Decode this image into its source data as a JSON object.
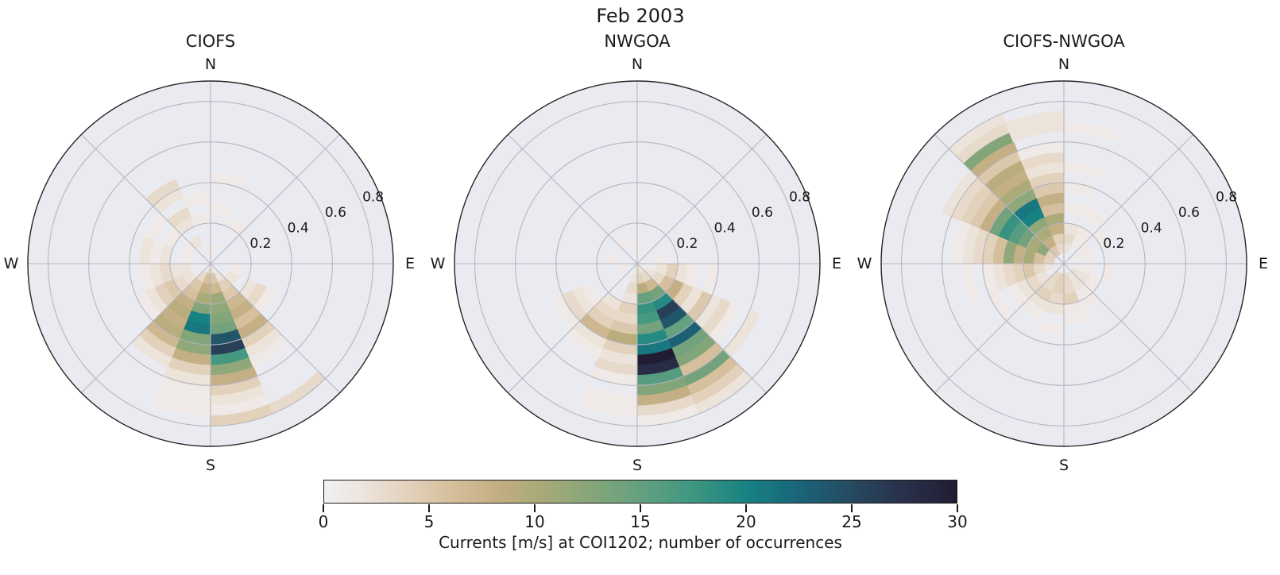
{
  "figure": {
    "title": "Feb 2003"
  },
  "style": {
    "axes_bg": "#eaeaf1",
    "grid_color": "#b3b3bc",
    "outline_color": "#262626",
    "text_color": "#1a1a1a"
  },
  "colorbar": {
    "min": 0,
    "max": 30,
    "ticks": [
      0,
      5,
      10,
      15,
      20,
      25,
      30
    ],
    "label": "Currents [m/s] at COI1202; number of occurrences",
    "stops": [
      [
        0.0,
        "#f1eff2"
      ],
      [
        0.05,
        "#eee7e1"
      ],
      [
        0.13,
        "#e3d2bd"
      ],
      [
        0.2,
        "#d6bf9c"
      ],
      [
        0.28,
        "#c2ad80"
      ],
      [
        0.35,
        "#a4aa77"
      ],
      [
        0.43,
        "#83a57a"
      ],
      [
        0.5,
        "#65a07f"
      ],
      [
        0.58,
        "#3f9781"
      ],
      [
        0.67,
        "#178182"
      ],
      [
        0.75,
        "#19657a"
      ],
      [
        0.83,
        "#264b61"
      ],
      [
        0.92,
        "#292f4a"
      ],
      [
        1.0,
        "#211c33"
      ]
    ]
  },
  "chart_data": [
    {
      "type": "heatmap",
      "layout": "polar",
      "title": "CIOFS",
      "compass": {
        "n": "N",
        "e": "E",
        "s": "S",
        "w": "W"
      },
      "theta_zero": "N",
      "theta_direction": "clockwise",
      "r_ticks": [
        0.2,
        0.4,
        0.6,
        0.8
      ],
      "r_max": 0.9,
      "dir_bin_deg": 22.5,
      "r_bin": 0.05,
      "value_unit": "number of occurrences",
      "cells_format": "[dir_bin_index_from_N_clockwise, radius_bin_index, count]",
      "cells": [
        [
          7,
          0,
          2
        ],
        [
          8,
          0,
          3
        ],
        [
          6,
          1,
          2
        ],
        [
          7,
          1,
          5
        ],
        [
          8,
          1,
          6
        ],
        [
          9,
          1,
          3
        ],
        [
          10,
          2,
          2
        ],
        [
          11,
          2,
          2
        ],
        [
          12,
          2,
          1
        ],
        [
          13,
          2,
          1
        ],
        [
          14,
          2,
          2
        ],
        [
          15,
          1,
          1
        ],
        [
          0,
          1,
          1
        ],
        [
          4,
          2,
          1
        ],
        [
          5,
          2,
          2
        ],
        [
          6,
          2,
          4
        ],
        [
          9,
          2,
          5
        ],
        [
          7,
          2,
          7
        ],
        [
          7,
          3,
          11
        ],
        [
          7,
          4,
          12
        ],
        [
          7,
          5,
          13
        ],
        [
          7,
          6,
          14
        ],
        [
          7,
          7,
          24
        ],
        [
          7,
          8,
          26
        ],
        [
          7,
          9,
          17
        ],
        [
          7,
          10,
          12
        ],
        [
          7,
          11,
          8
        ],
        [
          7,
          12,
          4
        ],
        [
          7,
          13,
          2
        ],
        [
          7,
          14,
          1
        ],
        [
          7,
          15,
          4
        ],
        [
          8,
          2,
          8
        ],
        [
          8,
          3,
          10
        ],
        [
          8,
          4,
          13
        ],
        [
          8,
          5,
          20
        ],
        [
          8,
          6,
          21
        ],
        [
          8,
          7,
          13
        ],
        [
          8,
          8,
          12
        ],
        [
          8,
          9,
          8
        ],
        [
          8,
          10,
          4
        ],
        [
          8,
          11,
          2
        ],
        [
          8,
          12,
          1
        ],
        [
          8,
          13,
          1
        ],
        [
          8,
          14,
          1
        ],
        [
          9,
          3,
          6
        ],
        [
          9,
          4,
          8
        ],
        [
          9,
          5,
          9
        ],
        [
          9,
          6,
          8
        ],
        [
          9,
          7,
          9
        ],
        [
          9,
          8,
          7
        ],
        [
          9,
          9,
          4
        ],
        [
          9,
          10,
          2
        ],
        [
          10,
          3,
          3
        ],
        [
          10,
          4,
          5
        ],
        [
          10,
          5,
          4
        ],
        [
          10,
          6,
          2
        ],
        [
          10,
          7,
          1
        ],
        [
          6,
          3,
          5
        ],
        [
          6,
          4,
          7
        ],
        [
          6,
          5,
          8
        ],
        [
          6,
          6,
          6
        ],
        [
          6,
          7,
          8
        ],
        [
          6,
          8,
          4
        ],
        [
          6,
          9,
          2
        ],
        [
          6,
          10,
          1
        ],
        [
          6,
          15,
          3
        ],
        [
          5,
          4,
          2
        ],
        [
          5,
          5,
          3
        ],
        [
          5,
          6,
          1
        ],
        [
          11,
          3,
          2
        ],
        [
          11,
          4,
          3
        ],
        [
          11,
          5,
          2
        ],
        [
          11,
          6,
          1
        ],
        [
          12,
          4,
          2
        ],
        [
          12,
          5,
          1
        ],
        [
          12,
          6,
          2
        ],
        [
          13,
          4,
          1
        ],
        [
          13,
          6,
          1
        ],
        [
          14,
          4,
          2
        ],
        [
          14,
          5,
          3
        ],
        [
          14,
          7,
          2
        ],
        [
          14,
          8,
          3
        ],
        [
          15,
          4,
          1
        ],
        [
          15,
          6,
          1
        ],
        [
          0,
          5,
          1
        ],
        [
          0,
          8,
          1
        ],
        [
          1,
          4,
          1
        ]
      ]
    },
    {
      "type": "heatmap",
      "layout": "polar",
      "title": "NWGOA",
      "compass": {
        "n": "N",
        "e": "E",
        "s": "S",
        "w": "W"
      },
      "theta_zero": "N",
      "theta_direction": "clockwise",
      "r_ticks": [
        0.2,
        0.4,
        0.6,
        0.8
      ],
      "r_max": 0.9,
      "dir_bin_deg": 22.5,
      "r_bin": 0.05,
      "value_unit": "number of occurrences",
      "cells_format": "[dir_bin_index_from_N_clockwise, radius_bin_index, count]",
      "cells": [
        [
          6,
          0,
          2
        ],
        [
          7,
          0,
          3
        ],
        [
          5,
          0,
          1
        ],
        [
          5,
          1,
          2
        ],
        [
          8,
          0,
          1
        ],
        [
          8,
          1,
          2
        ],
        [
          11,
          1,
          1
        ],
        [
          12,
          2,
          1
        ],
        [
          15,
          1,
          1
        ],
        [
          0,
          1,
          1
        ],
        [
          3,
          2,
          1
        ],
        [
          14,
          2,
          1
        ],
        [
          4,
          1,
          1
        ],
        [
          7,
          1,
          4
        ],
        [
          7,
          2,
          9
        ],
        [
          7,
          3,
          15
        ],
        [
          7,
          4,
          18
        ],
        [
          7,
          5,
          17
        ],
        [
          7,
          6,
          14
        ],
        [
          7,
          7,
          19
        ],
        [
          7,
          8,
          21
        ],
        [
          7,
          9,
          30
        ],
        [
          7,
          10,
          28
        ],
        [
          7,
          11,
          16
        ],
        [
          7,
          12,
          13
        ],
        [
          7,
          13,
          8
        ],
        [
          7,
          14,
          3
        ],
        [
          7,
          15,
          1
        ],
        [
          6,
          1,
          3
        ],
        [
          6,
          2,
          7
        ],
        [
          6,
          3,
          14
        ],
        [
          6,
          4,
          19
        ],
        [
          6,
          5,
          26
        ],
        [
          6,
          6,
          24
        ],
        [
          6,
          7,
          15
        ],
        [
          6,
          8,
          23
        ],
        [
          6,
          9,
          14
        ],
        [
          6,
          10,
          13
        ],
        [
          6,
          11,
          6
        ],
        [
          6,
          12,
          14
        ],
        [
          6,
          13,
          6
        ],
        [
          6,
          14,
          4
        ],
        [
          6,
          15,
          2
        ],
        [
          5,
          2,
          3
        ],
        [
          5,
          3,
          6
        ],
        [
          5,
          4,
          8
        ],
        [
          5,
          5,
          4
        ],
        [
          5,
          6,
          2
        ],
        [
          5,
          7,
          5
        ],
        [
          5,
          8,
          2
        ],
        [
          5,
          9,
          3
        ],
        [
          5,
          10,
          1
        ],
        [
          5,
          12,
          2
        ],
        [
          4,
          2,
          2
        ],
        [
          4,
          3,
          4
        ],
        [
          4,
          4,
          2
        ],
        [
          4,
          5,
          1
        ],
        [
          4,
          7,
          1
        ],
        [
          8,
          2,
          3
        ],
        [
          8,
          3,
          2
        ],
        [
          8,
          4,
          4
        ],
        [
          8,
          5,
          3
        ],
        [
          8,
          6,
          5
        ],
        [
          8,
          7,
          9
        ],
        [
          8,
          8,
          4
        ],
        [
          8,
          9,
          2
        ],
        [
          8,
          10,
          3
        ],
        [
          8,
          11,
          1
        ],
        [
          8,
          13,
          1
        ],
        [
          8,
          14,
          1
        ],
        [
          9,
          4,
          2
        ],
        [
          9,
          5,
          3
        ],
        [
          9,
          6,
          4
        ],
        [
          9,
          7,
          7
        ],
        [
          9,
          8,
          2
        ],
        [
          9,
          9,
          1
        ],
        [
          10,
          5,
          1
        ],
        [
          10,
          6,
          2
        ],
        [
          10,
          7,
          3
        ],
        [
          10,
          8,
          1
        ]
      ]
    },
    {
      "type": "heatmap",
      "layout": "polar",
      "title": "CIOFS-NWGOA",
      "compass": {
        "n": "N",
        "e": "E",
        "s": "S",
        "w": "W"
      },
      "theta_zero": "N",
      "theta_direction": "clockwise",
      "r_ticks": [
        0.2,
        0.4,
        0.6,
        0.8
      ],
      "r_max": 0.9,
      "dir_bin_deg": 22.5,
      "r_bin": 0.05,
      "value_unit": "number of occurrences",
      "cells_format": "[dir_bin_index_from_N_clockwise, radius_bin_index, count]",
      "cells": [
        [
          14,
          1,
          5
        ],
        [
          14,
          2,
          8
        ],
        [
          14,
          3,
          10
        ],
        [
          14,
          4,
          12
        ],
        [
          14,
          5,
          20
        ],
        [
          14,
          6,
          21
        ],
        [
          14,
          7,
          12
        ],
        [
          14,
          8,
          10
        ],
        [
          14,
          9,
          8
        ],
        [
          14,
          10,
          9
        ],
        [
          14,
          11,
          5
        ],
        [
          14,
          12,
          8
        ],
        [
          14,
          13,
          13
        ],
        [
          14,
          14,
          3
        ],
        [
          14,
          15,
          2
        ],
        [
          13,
          1,
          4
        ],
        [
          13,
          2,
          12
        ],
        [
          13,
          3,
          10
        ],
        [
          13,
          4,
          14
        ],
        [
          13,
          5,
          16
        ],
        [
          13,
          6,
          18
        ],
        [
          13,
          7,
          14
        ],
        [
          13,
          8,
          8
        ],
        [
          13,
          9,
          5
        ],
        [
          13,
          10,
          4
        ],
        [
          13,
          11,
          3
        ],
        [
          13,
          12,
          2
        ],
        [
          15,
          1,
          3
        ],
        [
          15,
          2,
          4
        ],
        [
          15,
          3,
          8
        ],
        [
          15,
          4,
          10
        ],
        [
          15,
          5,
          6
        ],
        [
          15,
          6,
          8
        ],
        [
          15,
          7,
          5
        ],
        [
          15,
          8,
          4
        ],
        [
          15,
          9,
          2
        ],
        [
          15,
          10,
          3
        ],
        [
          15,
          11,
          1
        ],
        [
          15,
          13,
          2
        ],
        [
          15,
          14,
          2
        ],
        [
          12,
          1,
          4
        ],
        [
          12,
          2,
          6
        ],
        [
          12,
          3,
          10
        ],
        [
          12,
          4,
          8
        ],
        [
          12,
          5,
          12
        ],
        [
          12,
          6,
          6
        ],
        [
          12,
          7,
          4
        ],
        [
          12,
          8,
          3
        ],
        [
          12,
          9,
          2
        ],
        [
          12,
          10,
          1
        ],
        [
          11,
          1,
          2
        ],
        [
          11,
          2,
          3
        ],
        [
          11,
          3,
          5
        ],
        [
          11,
          4,
          4
        ],
        [
          11,
          5,
          3
        ],
        [
          11,
          6,
          2
        ],
        [
          11,
          7,
          1
        ],
        [
          11,
          9,
          1
        ],
        [
          10,
          2,
          2
        ],
        [
          10,
          3,
          3
        ],
        [
          10,
          4,
          2
        ],
        [
          10,
          5,
          1
        ],
        [
          10,
          7,
          1
        ],
        [
          9,
          1,
          3
        ],
        [
          9,
          2,
          3
        ],
        [
          9,
          3,
          4
        ],
        [
          9,
          4,
          2
        ],
        [
          9,
          5,
          1
        ],
        [
          8,
          1,
          4
        ],
        [
          8,
          2,
          4
        ],
        [
          8,
          3,
          3
        ],
        [
          8,
          4,
          2
        ],
        [
          8,
          6,
          1
        ],
        [
          7,
          1,
          3
        ],
        [
          7,
          2,
          3
        ],
        [
          7,
          3,
          4
        ],
        [
          7,
          4,
          1
        ],
        [
          7,
          5,
          1
        ],
        [
          6,
          1,
          2
        ],
        [
          6,
          2,
          2
        ],
        [
          6,
          3,
          1
        ],
        [
          6,
          4,
          1
        ],
        [
          5,
          1,
          2
        ],
        [
          5,
          2,
          2
        ],
        [
          5,
          3,
          1
        ],
        [
          4,
          1,
          1
        ],
        [
          4,
          2,
          1
        ],
        [
          4,
          4,
          1
        ],
        [
          3,
          2,
          1
        ],
        [
          2,
          1,
          1
        ],
        [
          2,
          2,
          1
        ],
        [
          2,
          4,
          1
        ],
        [
          1,
          2,
          1
        ],
        [
          1,
          3,
          1
        ],
        [
          1,
          5,
          1
        ],
        [
          0,
          1,
          2
        ],
        [
          0,
          2,
          3
        ],
        [
          0,
          3,
          2
        ],
        [
          0,
          5,
          1
        ],
        [
          0,
          7,
          1
        ],
        [
          0,
          9,
          1
        ],
        [
          0,
          13,
          1
        ]
      ]
    }
  ]
}
